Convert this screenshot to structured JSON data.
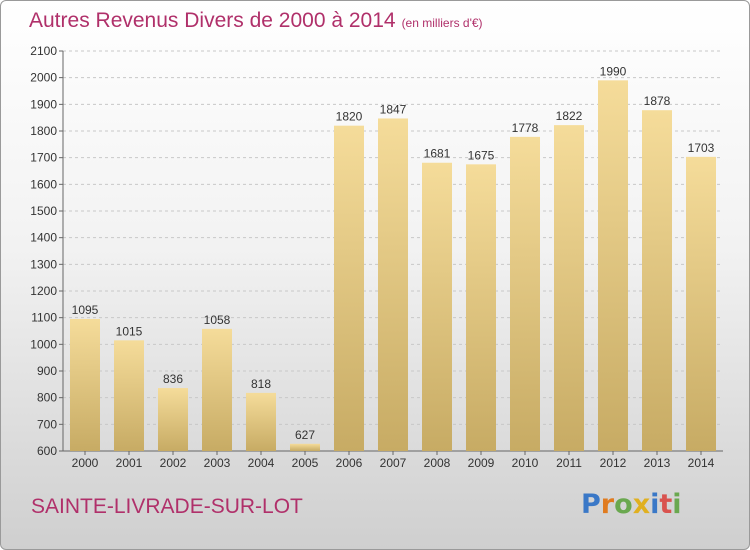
{
  "title": "Autres Revenus Divers de 2000 à 2014",
  "title_unit": "(en milliers d'€)",
  "commune": "SAINTE-LIVRADE-SUR-LOT",
  "logo_text": "Proxiti",
  "colors": {
    "title": "#b0306a",
    "bar_light": "#f5dc9a",
    "bar_dark": "#c7ab64"
  },
  "chart_data": {
    "type": "bar",
    "categories": [
      "2000",
      "2001",
      "2002",
      "2003",
      "2004",
      "2005",
      "2006",
      "2007",
      "2008",
      "2009",
      "2010",
      "2011",
      "2012",
      "2013",
      "2014"
    ],
    "values": [
      1095,
      1015,
      836,
      1058,
      818,
      627,
      1820,
      1847,
      1681,
      1675,
      1778,
      1822,
      1990,
      1878,
      1703
    ],
    "ylim": [
      600,
      2100
    ],
    "yticks": [
      600,
      700,
      800,
      900,
      1000,
      1100,
      1200,
      1300,
      1400,
      1500,
      1600,
      1700,
      1800,
      1900,
      2000,
      2100
    ],
    "grid": true
  }
}
